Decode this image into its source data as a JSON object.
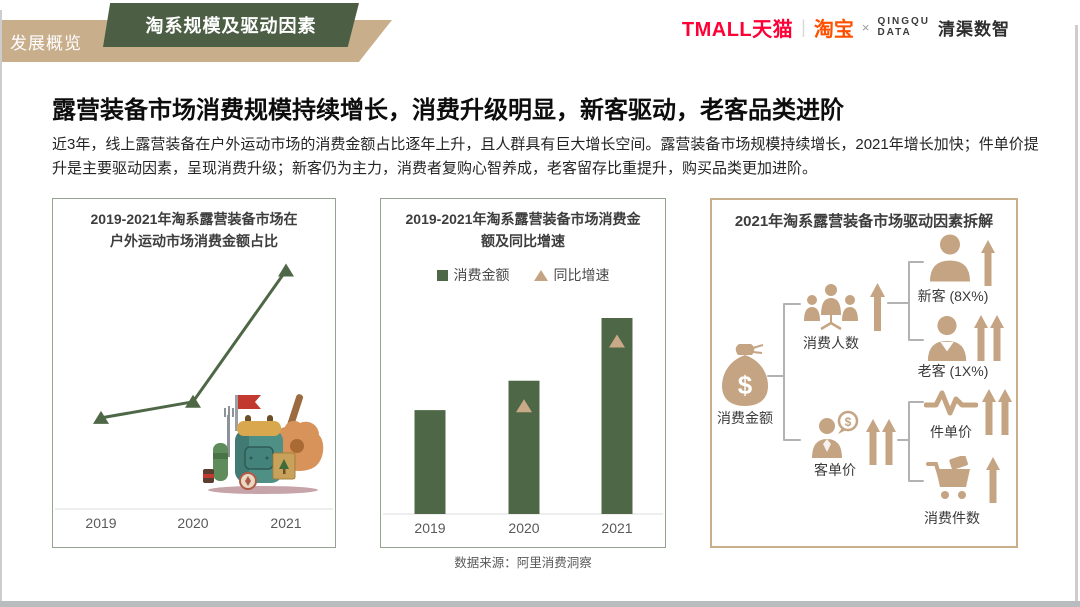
{
  "slide": {
    "tab_label": "发展概览",
    "badge_label": "淘系规模及驱动因素",
    "headline": "露营装备市场消费规模持续增长，消费升级明显，新客驱动，老客品类进阶",
    "summary": "近3年，线上露营装备在户外运动市场的消费金额占比逐年上升，且人群具有巨大增长空间。露营装备市场规模持续增长，2021年增长加快；件单价提升是主要驱动因素，呈现消费升级；新客仍为主力，消费者复购心智养成，老客留存比重提升，购买品类更加进阶。",
    "source_note": "数据来源：阿里消费洞察"
  },
  "logos": {
    "tmall": "TMALL天猫",
    "divider": "|",
    "taobao": "淘宝",
    "cross": "×",
    "partner_en_line1": "QINGQU",
    "partner_en_line2": "DATA",
    "partner_cn": "清渠数智"
  },
  "colors": {
    "accent_tan": "#C9AE8C",
    "accent_green": "#4C5E44",
    "data_green": "#4E6847",
    "data_tan": "#C4A482",
    "tmall_red": "#FF0036",
    "taobao_orange": "#FF5000"
  },
  "chart_data": [
    {
      "type": "line",
      "title": "2019-2021年淘系露营装备市场在户外运动市场消费金额占比",
      "title_lines": [
        "2019-2021年淘系露营装备市场在",
        "户外运动市场消费金额占比"
      ],
      "categories": [
        "2019",
        "2020",
        "2021"
      ],
      "values_norm": [
        0.34,
        0.4,
        0.89
      ],
      "note": "图中未标注数值，values_norm为按绘图高度估算的相对占比",
      "color": "#4E6847",
      "marker": "triangle-up",
      "grid": false
    },
    {
      "type": "bar",
      "title": "2019-2021年淘系露营装备市场消费金额及同比增速",
      "title_lines": [
        "2019-2021年淘系露营装备市场消费金",
        "额及同比增速"
      ],
      "categories": [
        "2019",
        "2020",
        "2021"
      ],
      "series": [
        {
          "name": "消费金额",
          "type": "bar",
          "values_norm": [
            0.53,
            0.68,
            1.0
          ],
          "color": "#4E6847"
        },
        {
          "name": "同比增速",
          "type": "point",
          "marker": "triangle-up",
          "values_norm": [
            null,
            0.55,
            0.88
          ],
          "color": "#C9A987"
        }
      ],
      "note": "图中未标注数值，values_norm为按绘图高度估算的相对值",
      "legend_position": "top",
      "grid": false
    }
  ],
  "driver_diagram": {
    "title": "2021年淘系露营装备市场驱动因素拆解",
    "root": {
      "label": "消费金额",
      "icon": "money-bag-icon"
    },
    "branches": [
      {
        "label": "消费人数",
        "icon": "people-group-icon",
        "trend_arrows": 1,
        "children": [
          {
            "label": "新客 (8X%)",
            "icon": "person-icon",
            "trend_arrows": 1
          },
          {
            "label": "老客 (1X%)",
            "icon": "person-icon",
            "trend_arrows": 2
          }
        ]
      },
      {
        "label": "客单价",
        "icon": "person-coin-icon",
        "trend_arrows": 2,
        "children": [
          {
            "label": "件单价",
            "icon": "pulse-icon",
            "trend_arrows": 2
          },
          {
            "label": "消费件数",
            "icon": "cart-icon",
            "trend_arrows": 1
          }
        ]
      }
    ]
  }
}
